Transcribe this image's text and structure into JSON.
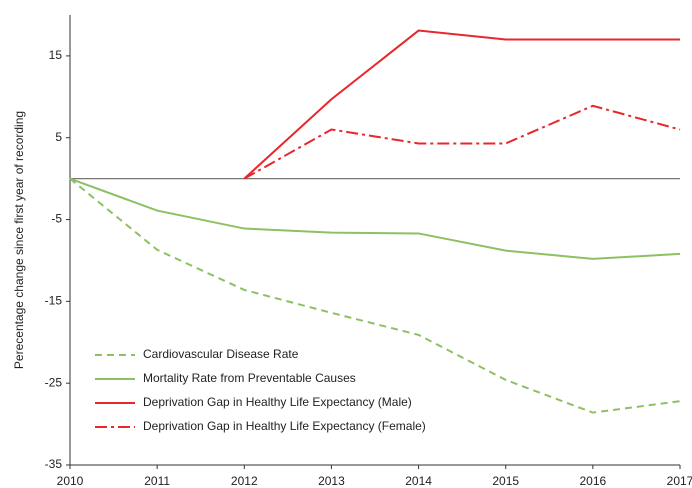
{
  "chart_data": {
    "type": "line",
    "ylabel": "Perecentage change since first year of recording",
    "x": [
      2010,
      2011,
      2012,
      2013,
      2014,
      2015,
      2016,
      2017
    ],
    "xlim": [
      2010,
      2017
    ],
    "xticks": [
      2010,
      2011,
      2012,
      2013,
      2014,
      2015,
      2016,
      2017
    ],
    "ylim": [
      -35,
      20
    ],
    "yticks": [
      -35,
      -25,
      -15,
      -5,
      5,
      15
    ],
    "legend": "lower left",
    "series": [
      {
        "name": "Cardiovascular Disease Rate",
        "color": "#8dc063",
        "dash": "dashed",
        "values": [
          0,
          -8.7,
          -13.6,
          -16.4,
          -19.1,
          -24.6,
          -28.6,
          -27.2
        ]
      },
      {
        "name": "Mortality Rate from Preventable Causes",
        "color": "#8dc063",
        "dash": "solid",
        "values": [
          0,
          -3.9,
          -6.1,
          -6.6,
          -6.7,
          -8.8,
          -9.8,
          -9.2
        ]
      },
      {
        "name": "Deprivation Gap in Healthy Life Expectancy (Male)",
        "color": "#e8262b",
        "dash": "solid",
        "values": [
          null,
          null,
          0,
          9.7,
          18.1,
          17.0,
          17.0,
          17.0
        ]
      },
      {
        "name": "Deprivation Gap in Healthy Life Expectancy (Female)",
        "color": "#e8262b",
        "dash": "dashdot",
        "values": [
          null,
          null,
          0,
          6.0,
          4.3,
          4.3,
          8.9,
          6.0
        ]
      }
    ]
  }
}
